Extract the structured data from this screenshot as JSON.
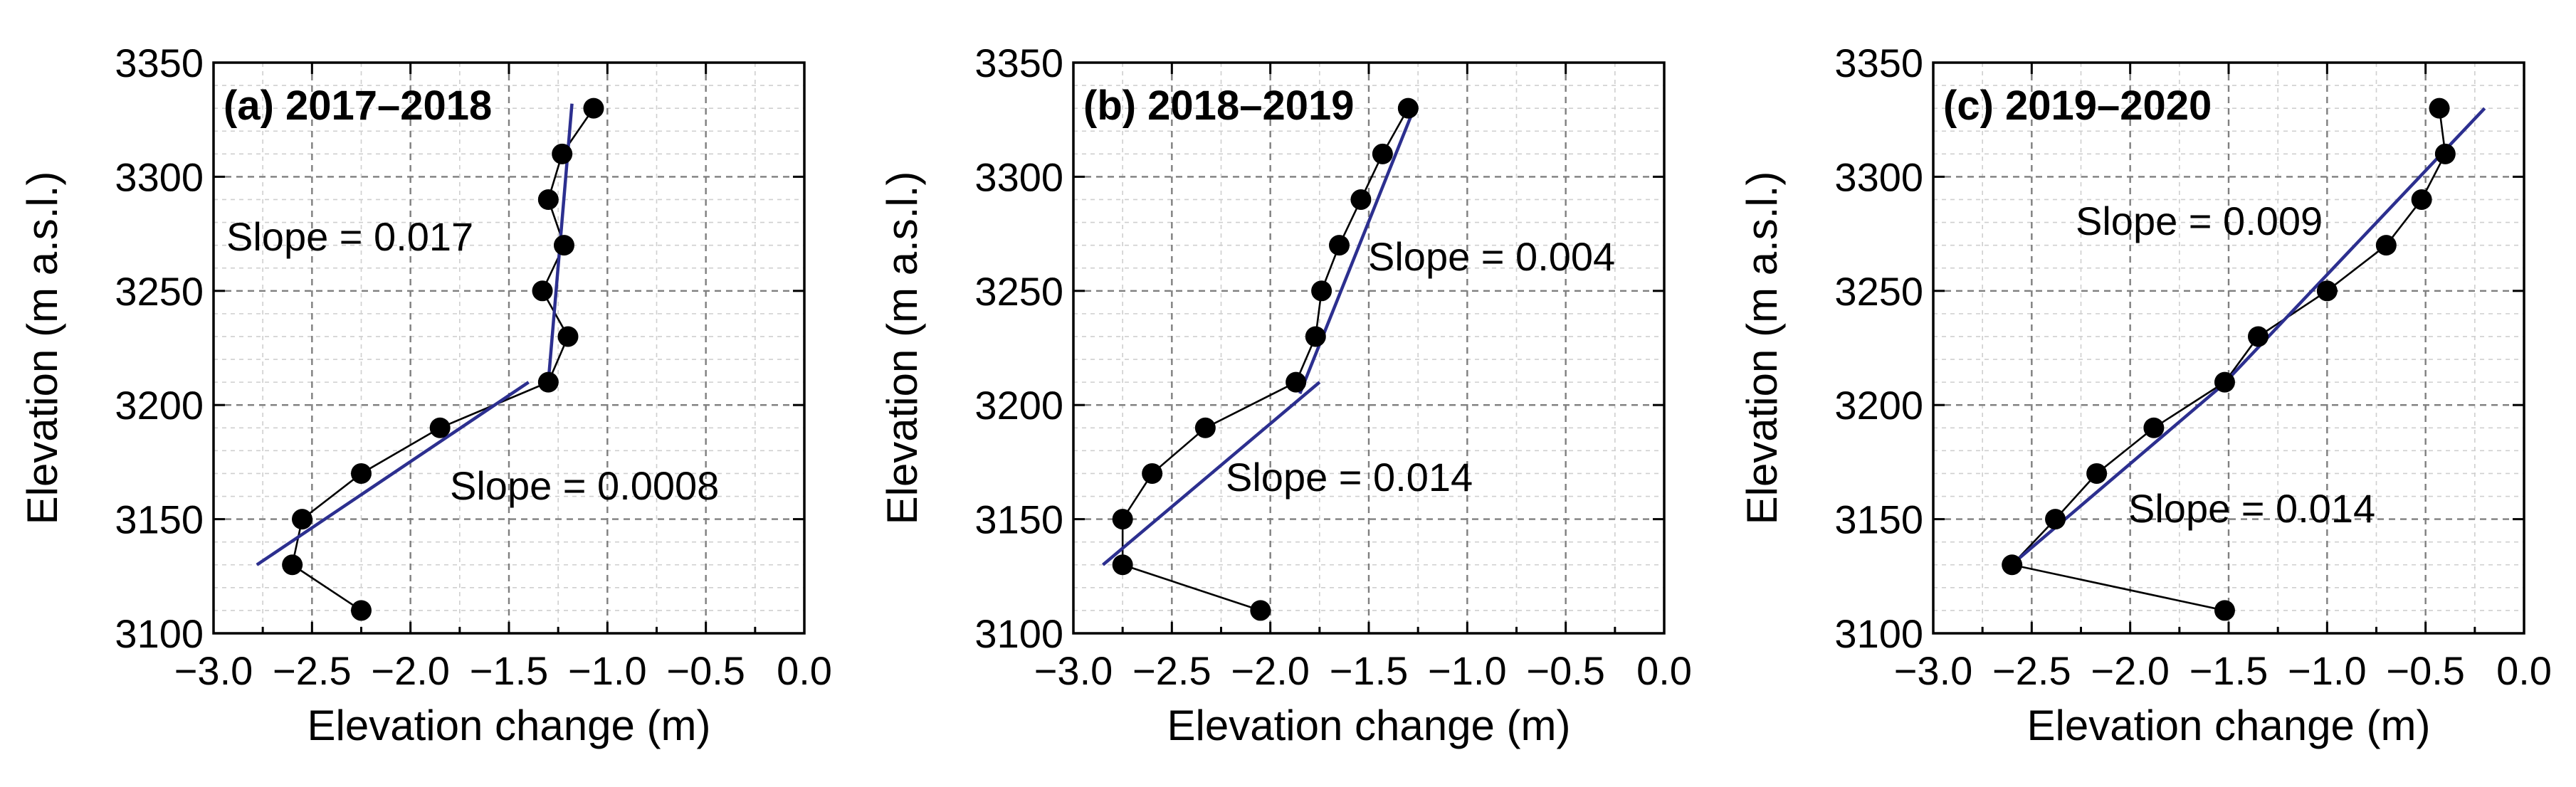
{
  "chart_data": [
    {
      "type": "line",
      "title": "(a) 2017–2018",
      "xlabel": "Elevation change (m)",
      "ylabel": "Elevation (m a.s.l.)",
      "xlim": [
        -3.0,
        0.0
      ],
      "ylim": [
        3100,
        3350
      ],
      "xticks": [
        "−3.0",
        "−2.5",
        "−2.0",
        "−1.5",
        "−1.0",
        "−0.5",
        "0.0"
      ],
      "yticks": [
        "3100",
        "3150",
        "3200",
        "3250",
        "3300",
        "3350"
      ],
      "grid": true,
      "series": [
        {
          "name": "Elevation change",
          "x": [
            -2.25,
            -2.6,
            -2.55,
            -2.25,
            -1.85,
            -1.3,
            -1.2,
            -1.33,
            -1.22,
            -1.3,
            -1.23,
            -1.07
          ],
          "y": [
            3110,
            3130,
            3150,
            3170,
            3190,
            3210,
            3230,
            3250,
            3270,
            3290,
            3310,
            3330
          ]
        }
      ],
      "fits": [
        {
          "label": "Slope = 0.017",
          "x": [
            -2.78,
            -1.4
          ],
          "y": [
            3130,
            3210
          ]
        },
        {
          "label": "Slope = 0.0008",
          "x": [
            -1.3,
            -1.18
          ],
          "y": [
            3210,
            3332
          ]
        }
      ]
    },
    {
      "type": "line",
      "title": "(b) 2018–2019",
      "xlabel": "Elevation change (m)",
      "ylabel": "Elevation (m a.s.l.)",
      "xlim": [
        -3.0,
        0.0
      ],
      "ylim": [
        3100,
        3350
      ],
      "xticks": [
        "−3.0",
        "−2.5",
        "−2.0",
        "−1.5",
        "−1.0",
        "−0.5",
        "0.0"
      ],
      "yticks": [
        "3100",
        "3150",
        "3200",
        "3250",
        "3300",
        "3350"
      ],
      "grid": true,
      "series": [
        {
          "name": "Elevation change",
          "x": [
            -2.05,
            -2.75,
            -2.75,
            -2.6,
            -2.33,
            -1.87,
            -1.77,
            -1.74,
            -1.65,
            -1.54,
            -1.43,
            -1.3
          ],
          "y": [
            3110,
            3130,
            3150,
            3170,
            3190,
            3210,
            3230,
            3250,
            3270,
            3290,
            3310,
            3330
          ]
        }
      ],
      "fits": [
        {
          "label": "Slope = 0.014",
          "x": [
            -2.85,
            -1.75
          ],
          "y": [
            3130,
            3210
          ]
        },
        {
          "label": "Slope = 0.004",
          "x": [
            -1.85,
            -1.27
          ],
          "y": [
            3205,
            3330
          ]
        }
      ]
    },
    {
      "type": "line",
      "title": "(c) 2019–2020",
      "xlabel": "Elevation change (m)",
      "ylabel": "Elevation (m a.s.l.)",
      "xlim": [
        -3.0,
        0.0
      ],
      "ylim": [
        3100,
        3350
      ],
      "xticks": [
        "−3.0",
        "−2.5",
        "−2.0",
        "−1.5",
        "−1.0",
        "−0.5",
        "0.0"
      ],
      "yticks": [
        "3100",
        "3150",
        "3200",
        "3250",
        "3300",
        "3350"
      ],
      "grid": true,
      "series": [
        {
          "name": "Elevation change",
          "x": [
            -1.52,
            -2.6,
            -2.38,
            -2.17,
            -1.88,
            -1.52,
            -1.35,
            -1.0,
            -0.7,
            -0.52,
            -0.4,
            -0.43
          ],
          "y": [
            3110,
            3130,
            3150,
            3170,
            3190,
            3210,
            3230,
            3250,
            3270,
            3290,
            3310,
            3330
          ]
        }
      ],
      "fits": [
        {
          "label": "Slope = 0.014",
          "x": [
            -2.63,
            -1.5
          ],
          "y": [
            3128,
            3211
          ]
        },
        {
          "label": "Slope = 0.009",
          "x": [
            -1.55,
            -0.2
          ],
          "y": [
            3207,
            3330
          ]
        }
      ]
    }
  ]
}
